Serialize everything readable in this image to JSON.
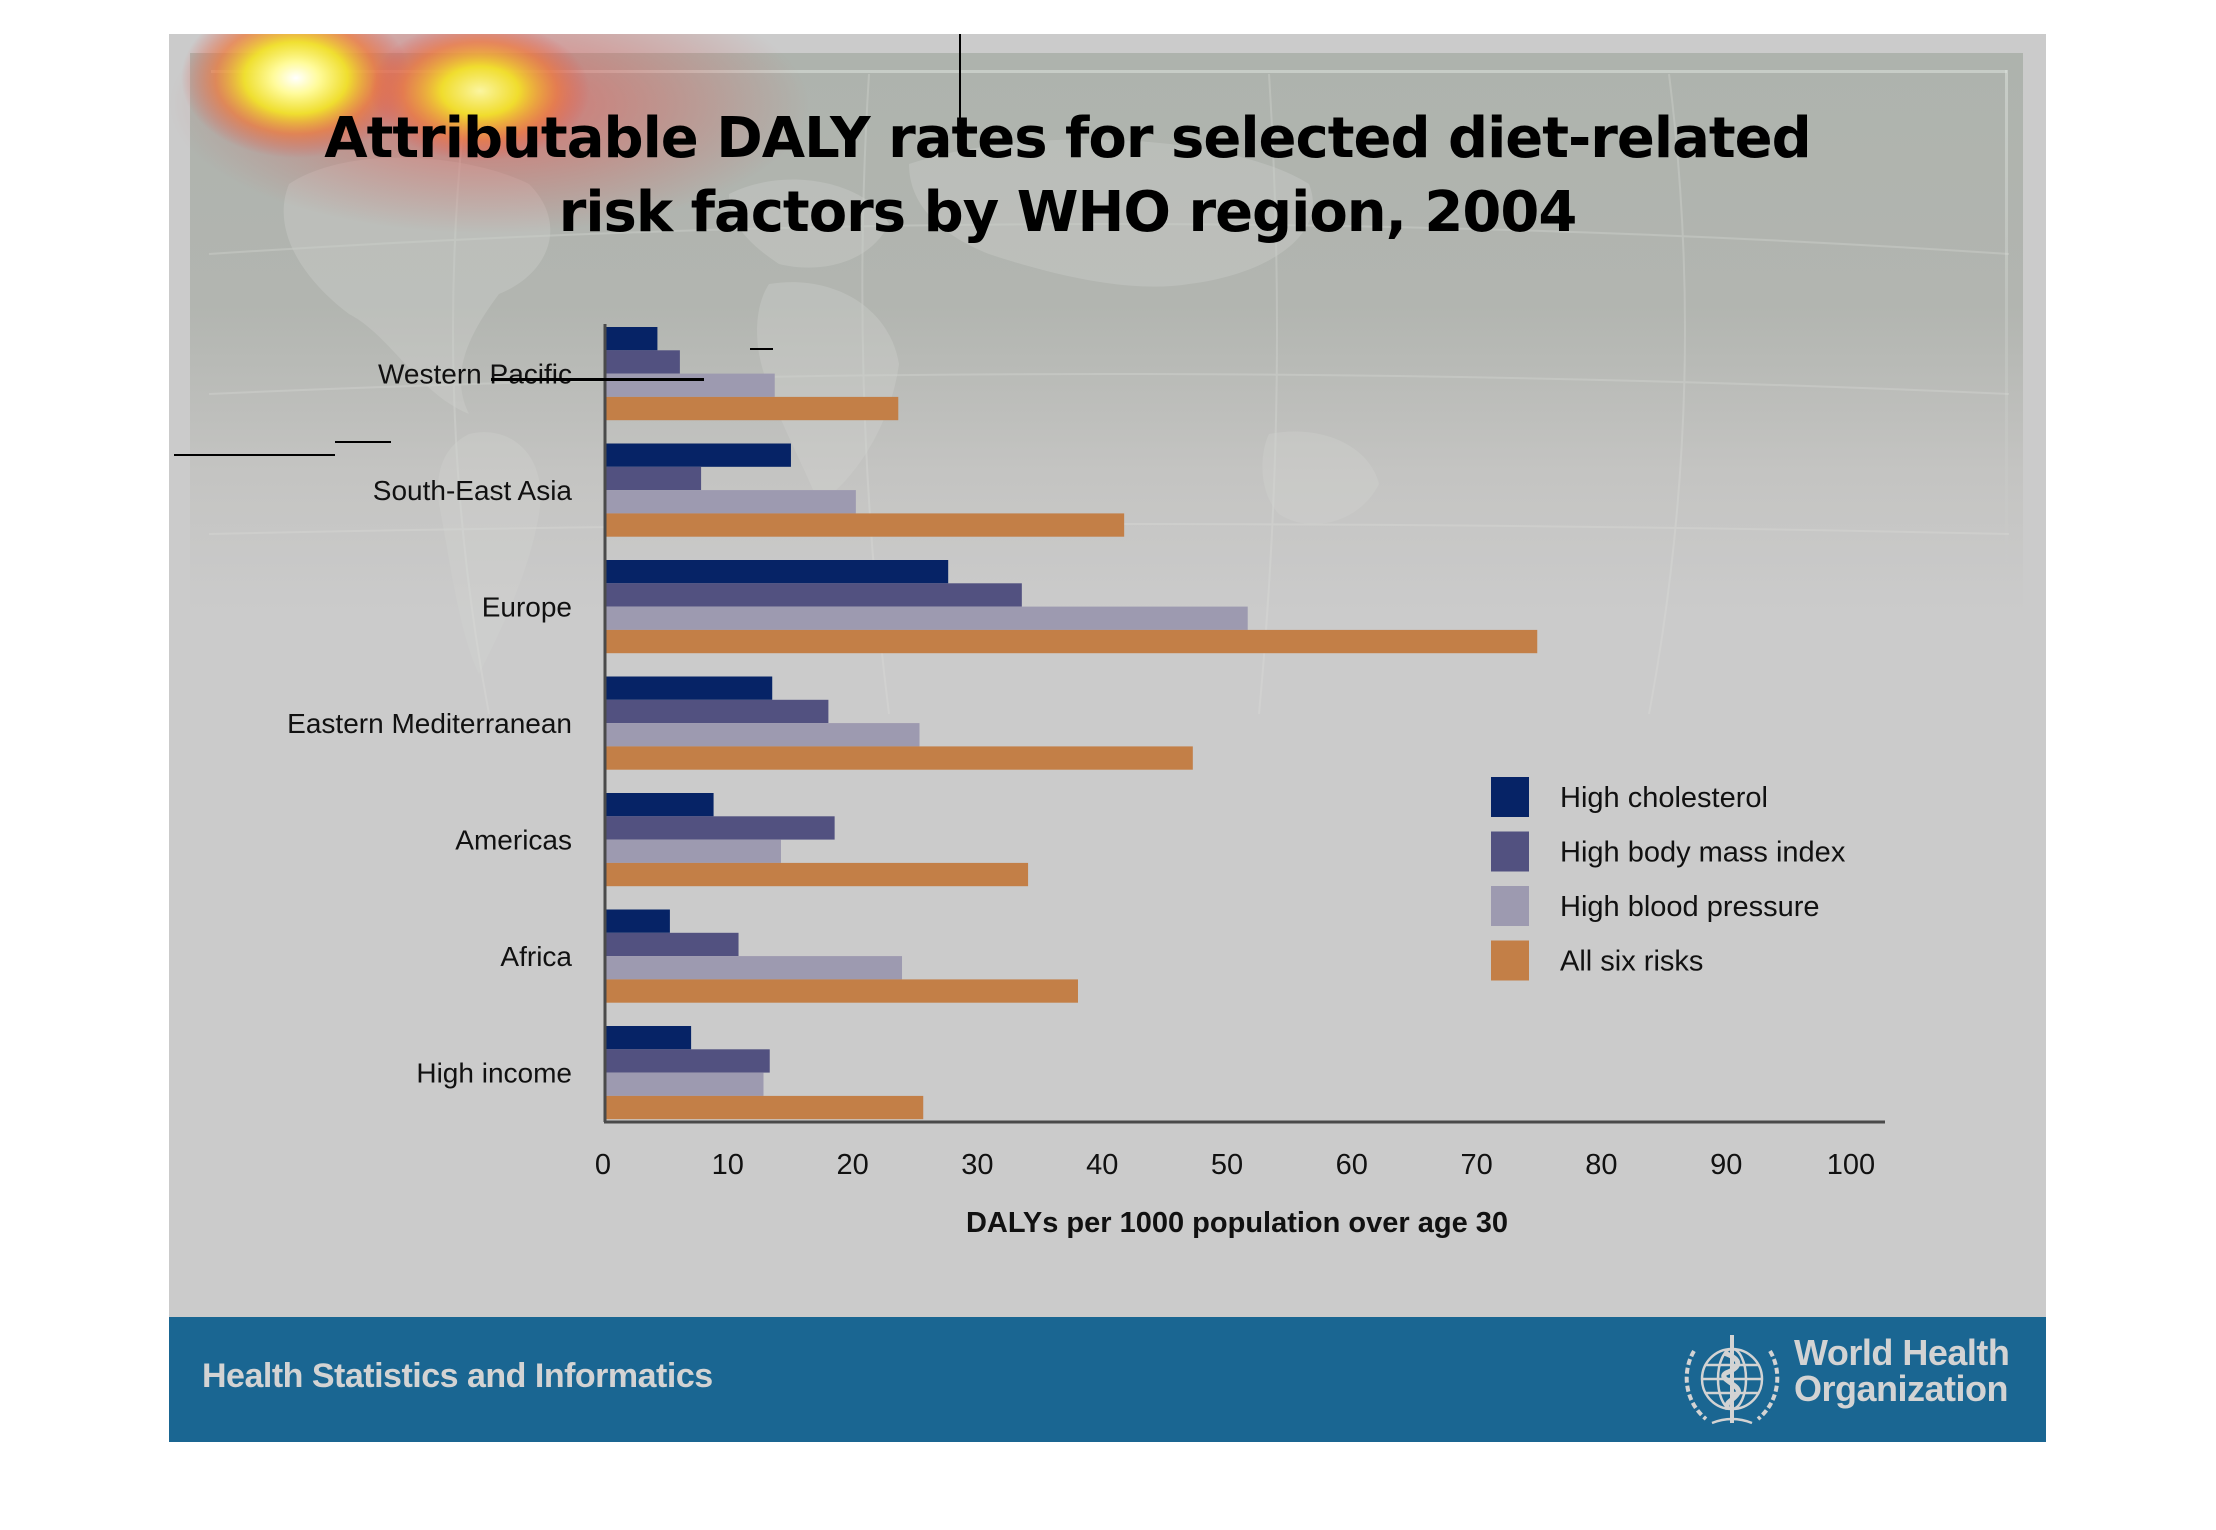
{
  "slide": {
    "title_line1": "Attributable DALY rates for selected diet-related",
    "title_line2": "risk factors by WHO region, 2004"
  },
  "footer": {
    "department": "Health Statistics and Informatics",
    "org_line1": "World Health",
    "org_line2": "Organization",
    "logo_icon": "who-emblem-icon",
    "background_color": "#1a6692"
  },
  "chart_data": {
    "type": "bar",
    "orientation": "horizontal",
    "title": "Attributable DALY rates for selected diet-related risk factors by WHO region, 2004",
    "xlabel": "DALYs per 1000 population over age 30",
    "ylabel": "",
    "xlim": [
      0,
      100
    ],
    "xticks": [
      0,
      10,
      20,
      30,
      40,
      50,
      60,
      70,
      80,
      90,
      100
    ],
    "grid": false,
    "legend_position": "right",
    "categories": [
      "Western Pacific",
      "South-East Asia",
      "Europe",
      "Eastern Mediterranean",
      "Americas",
      "Africa",
      "High income"
    ],
    "series": [
      {
        "name": "High cholesterol",
        "color": "#062366",
        "values": [
          4.2,
          14.9,
          27.5,
          13.4,
          8.7,
          5.2,
          6.9
        ]
      },
      {
        "name": "High body mass index",
        "color": "#525180",
        "values": [
          6.0,
          7.7,
          33.4,
          17.9,
          18.4,
          10.7,
          13.2
        ]
      },
      {
        "name": "High blood pressure",
        "color": "#9d9ab0",
        "values": [
          13.6,
          20.1,
          51.5,
          25.2,
          14.1,
          23.8,
          12.7
        ]
      },
      {
        "name": "All six risks",
        "color": "#c37f47",
        "values": [
          23.5,
          41.6,
          74.7,
          47.1,
          33.9,
          37.9,
          25.5
        ]
      }
    ]
  }
}
